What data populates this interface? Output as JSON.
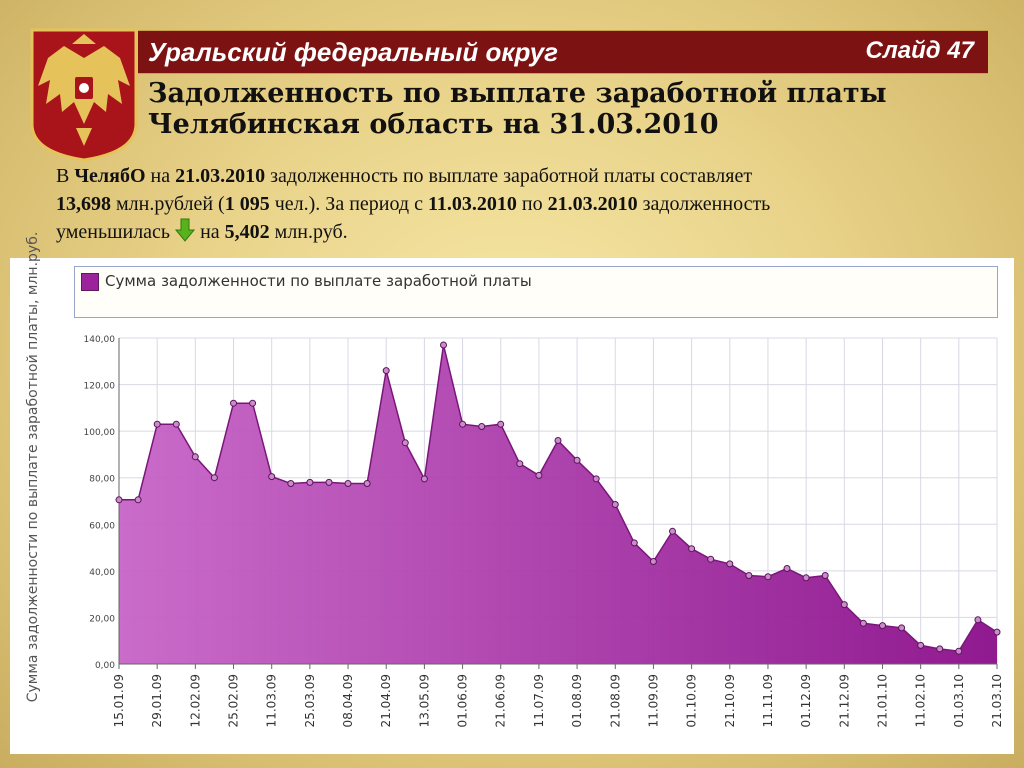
{
  "header": {
    "title": "Уральский федеральный округ",
    "slide": "Слайд 47"
  },
  "subtitle": {
    "line1": "Задолженность по выплате заработной платы",
    "line2": "Челябинская область на 31.03.2010"
  },
  "paragraph": {
    "t1": "В ",
    "region": "ЧелябО",
    "t2": " на ",
    "date1": "21.03.2010",
    "t3": " задолженность по выплате заработной платы составляет",
    "amount": "13,698",
    "t4": " млн.рублей (",
    "people": "1 095",
    "t5": " чел.). За период с ",
    "from": "11.03.2010",
    "t6": " по ",
    "to": "21.03.2010",
    "t7": " задолженность",
    "t8": "уменьшилась ",
    "t9": " на ",
    "decrease": "5,402",
    "t10": " млн.руб."
  },
  "colors": {
    "header_bg": "#7d1212",
    "area_top": "#c764c7",
    "area_bottom": "#8a0e8a",
    "line": "#7a167a",
    "arrow": "#58b21c"
  },
  "chart_data": {
    "type": "area",
    "legend": "Сумма задолженности по выплате заработной платы",
    "ylabel": "Сумма задолженности по выплате заработной платы, млн.руб.",
    "ylim": [
      0,
      140
    ],
    "yticks": [
      "0,00",
      "20,00",
      "40,00",
      "60,00",
      "80,00",
      "100,00",
      "120,00",
      "140,00"
    ],
    "xticks": [
      "15.01.09",
      "29.01.09",
      "12.02.09",
      "25.02.09",
      "11.03.09",
      "25.03.09",
      "08.04.09",
      "21.04.09",
      "13.05.09",
      "01.06.09",
      "21.06.09",
      "11.07.09",
      "01.08.09",
      "21.08.09",
      "11.09.09",
      "01.10.09",
      "21.10.09",
      "11.11.09",
      "01.12.09",
      "21.12.09",
      "21.01.10",
      "11.02.10",
      "01.03.10",
      "21.03.10"
    ],
    "series": [
      {
        "name": "Сумма задолженности по выплате заработной платы",
        "values": [
          70.5,
          70.5,
          103,
          103,
          89,
          80,
          112,
          112,
          80.5,
          77.5,
          78,
          78,
          77.5,
          77.5,
          126,
          95,
          79.5,
          137,
          103,
          102,
          103,
          86,
          81,
          96,
          87.5,
          79.5,
          68.5,
          52,
          44,
          57,
          49.5,
          45,
          43,
          38,
          37.5,
          41,
          37,
          38,
          25.5,
          17.5,
          16.5,
          15.5,
          8,
          6.5,
          5.5,
          19,
          13.7
        ]
      }
    ]
  }
}
